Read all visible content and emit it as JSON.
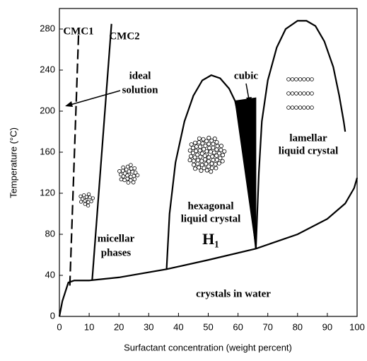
{
  "chart_data": {
    "type": "line",
    "xlabel": "Surfactant concentration (weight percent)",
    "ylabel": "Temperature (°C)",
    "xlim": [
      0,
      100
    ],
    "ylim": [
      0,
      300
    ],
    "xticks": [
      0,
      10,
      20,
      30,
      40,
      50,
      60,
      70,
      80,
      90,
      100
    ],
    "yticks": [
      0,
      40,
      80,
      120,
      160,
      200,
      240,
      280
    ],
    "series": [
      {
        "color": "#000000",
        "dash": true,
        "x": [
          3.5,
          6.5
        ],
        "values": [
          30,
          280
        ]
      },
      {
        "color": "#000000",
        "x": [
          11,
          17.5
        ],
        "values": [
          35,
          285
        ]
      },
      {
        "color": "#000000",
        "x": [
          0,
          1,
          3,
          5,
          10,
          20,
          36,
          50,
          66,
          80,
          90,
          96,
          99,
          100
        ],
        "values": [
          0,
          15,
          33,
          35,
          35,
          38,
          46,
          55,
          66,
          80,
          95,
          110,
          125,
          135
        ]
      },
      {
        "color": "#000000",
        "x": [
          36,
          37,
          39,
          42,
          45,
          48,
          51,
          54,
          57,
          59,
          62,
          64,
          66
        ],
        "values": [
          46,
          100,
          150,
          190,
          215,
          230,
          235,
          232,
          222,
          210,
          170,
          120,
          66
        ]
      },
      {
        "color": "#000000",
        "fill": true,
        "x": [
          59,
          66,
          66
        ],
        "values": [
          210,
          213,
          66
        ]
      },
      {
        "color": "#000000",
        "x": [
          66,
          67,
          68,
          70,
          73,
          76,
          80,
          83,
          86,
          89,
          92,
          94,
          95.5,
          96
        ],
        "values": [
          66,
          140,
          190,
          230,
          262,
          280,
          288,
          288,
          283,
          268,
          243,
          215,
          190,
          180
        ]
      }
    ],
    "annotations": [
      [
        "CMC1"
      ],
      [
        "CMC2"
      ],
      [
        "ideal",
        "solution"
      ],
      [
        "micellar",
        "phases"
      ],
      [
        "hexagonal",
        "liquid crystal"
      ],
      [
        "H₁"
      ],
      [
        "cubic"
      ],
      [
        "lamellar",
        "liquid crystal"
      ],
      [
        "crystals in water"
      ]
    ]
  }
}
